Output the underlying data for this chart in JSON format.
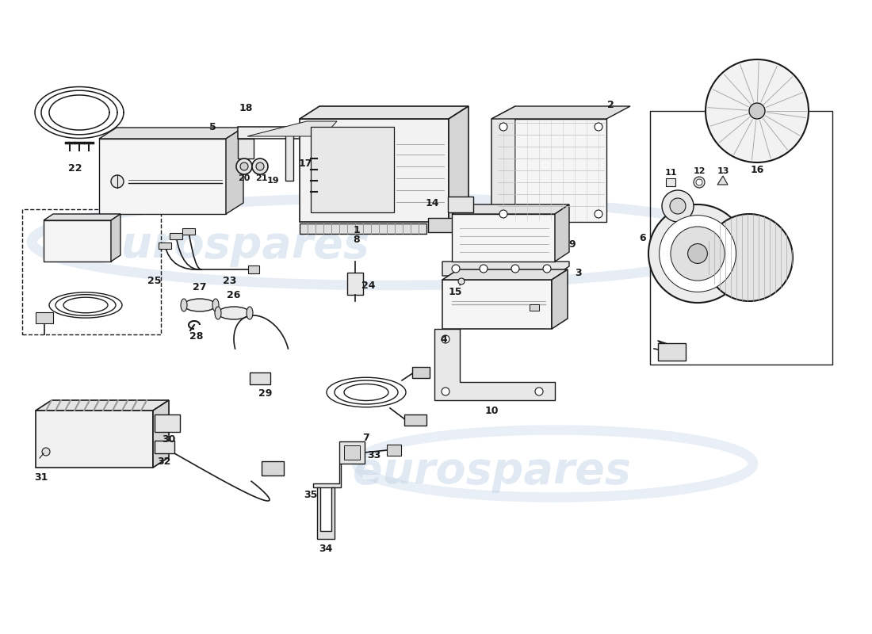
{
  "bg_color": "#ffffff",
  "lc": "#1a1a1a",
  "wm_color": "#c5d5e8",
  "wm_alpha": 0.5
}
